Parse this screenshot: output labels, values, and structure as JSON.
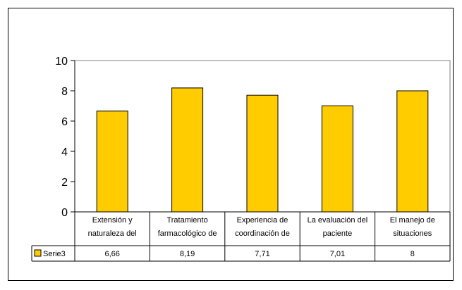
{
  "chart_data": {
    "type": "bar",
    "categories": [
      [
        "Extensión y",
        "naturaleza del"
      ],
      [
        "Tratamiento",
        "farmacológico de"
      ],
      [
        "Experiencia de",
        "coordinación de"
      ],
      [
        "La evaluación del",
        "paciente"
      ],
      [
        "El manejo de",
        "situaciones"
      ]
    ],
    "series": [
      {
        "name": "Serie3",
        "values": [
          6.66,
          8.19,
          7.71,
          7.01,
          8
        ],
        "display": [
          "6,66",
          "8,19",
          "7,71",
          "7,01",
          "8"
        ]
      }
    ],
    "ylim": [
      0,
      10
    ],
    "yticks": [
      "0",
      "2",
      "4",
      "6",
      "8",
      "10"
    ],
    "bar_color": "#FFCC00",
    "legend": "data-table",
    "grid": false
  }
}
